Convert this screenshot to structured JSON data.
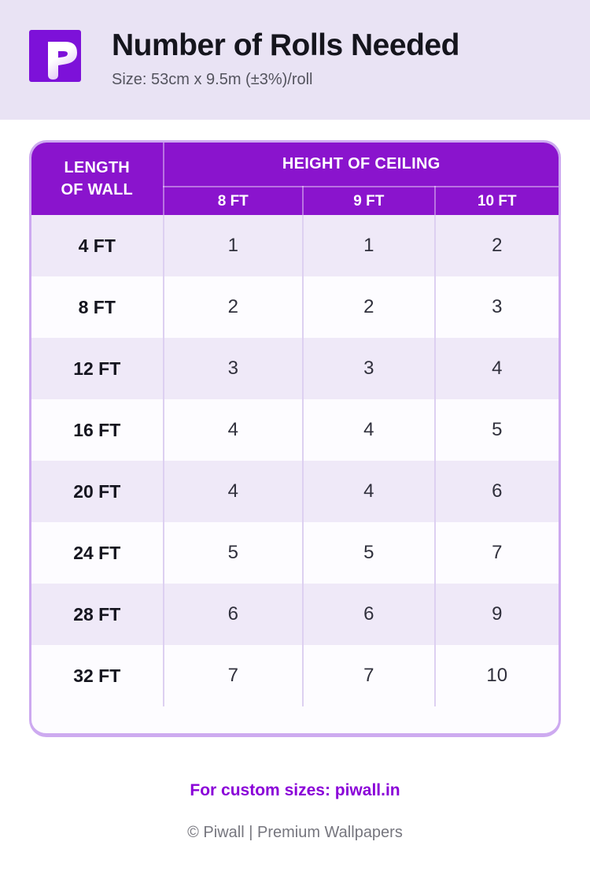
{
  "header": {
    "logo_letter": "P",
    "title": "Number of Rolls Needed",
    "subtitle": "Size: 53cm x 9.5m (±3%)/roll"
  },
  "chart_data": {
    "type": "table",
    "title": "Number of Rolls Needed",
    "subtitle": "Size: 53cm x 9.5m (±3%)/roll",
    "row_header_label": "LENGTH OF WALL",
    "column_group_label": "HEIGHT OF CEILING",
    "columns": [
      "8 FT",
      "9 FT",
      "10 FT"
    ],
    "rows": [
      {
        "label": "4 FT",
        "values": [
          1,
          1,
          2
        ]
      },
      {
        "label": "8 FT",
        "values": [
          2,
          2,
          3
        ]
      },
      {
        "label": "12 FT",
        "values": [
          3,
          3,
          4
        ]
      },
      {
        "label": "16 FT",
        "values": [
          4,
          4,
          5
        ]
      },
      {
        "label": "20 FT",
        "values": [
          4,
          4,
          6
        ]
      },
      {
        "label": "24 FT",
        "values": [
          5,
          5,
          7
        ]
      },
      {
        "label": "28 FT",
        "values": [
          6,
          6,
          9
        ]
      },
      {
        "label": "32 FT",
        "values": [
          7,
          7,
          10
        ]
      }
    ]
  },
  "footer": {
    "custom_sizes": "For custom sizes: piwall.in",
    "copyright": "© Piwall | Premium Wallpapers"
  },
  "colors": {
    "logo_purple": "#7d11d9",
    "header_purple": "#8a14cd",
    "link_purple": "#8a00d8",
    "top_band": "#e9e3f4",
    "row_stripe": "#efe9f8",
    "card_border": "#cdaaf0"
  }
}
